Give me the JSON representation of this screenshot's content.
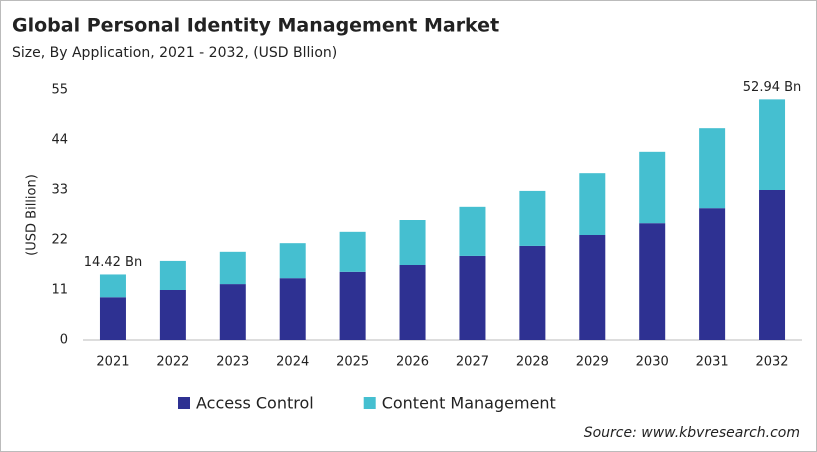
{
  "chart_data": {
    "type": "stacked_bar",
    "title": "Global Personal Identity Management Market",
    "subtitle": "Size, By Application, 2021 - 2032, (USD Bllion)",
    "y_label": "(USD Billion)",
    "categories": [
      "2021",
      "2022",
      "2023",
      "2024",
      "2025",
      "2026",
      "2027",
      "2028",
      "2029",
      "2030",
      "2031",
      "2032"
    ],
    "series": [
      {
        "name": "Access Control",
        "color": "#2e3192",
        "values": [
          9.4,
          11.0,
          12.3,
          13.6,
          15.0,
          16.5,
          18.5,
          20.7,
          23.1,
          25.7,
          29.0,
          33.0
        ]
      },
      {
        "name": "Content Management",
        "color": "#45bfd0",
        "values": [
          5.02,
          6.4,
          7.1,
          7.7,
          8.8,
          9.9,
          10.8,
          12.1,
          13.6,
          15.7,
          17.6,
          19.94
        ]
      }
    ],
    "annotations": [
      "14.42 Bn",
      "52.94 Bn"
    ],
    "ylim": [
      0,
      55
    ],
    "yticks": [
      0,
      11,
      22,
      33,
      44,
      55
    ],
    "grid": false,
    "legend": "bottom",
    "source": "Source: www.kbvresearch.com"
  }
}
